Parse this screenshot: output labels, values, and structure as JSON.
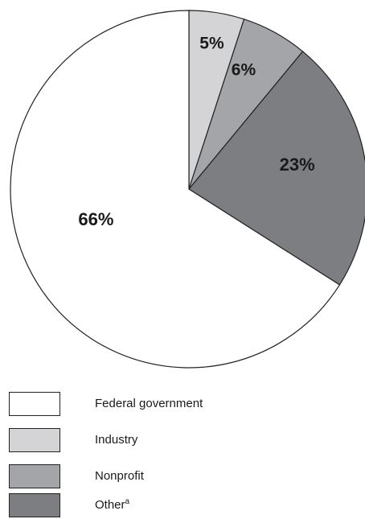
{
  "chart_data": {
    "type": "pie",
    "categories": [
      "Federal government",
      "Industry",
      "Nonprofit",
      "Other"
    ],
    "values": [
      66,
      5,
      6,
      23
    ],
    "value_labels": [
      "66%",
      "5%",
      "6%",
      "23%"
    ],
    "colors": [
      "#ffffff",
      "#d4d4d6",
      "#a4a5a8",
      "#7d7e82"
    ],
    "start": "top, clockwise from Industry",
    "legend_position": "bottom",
    "legend": {
      "items": [
        {
          "label": "Federal government",
          "color": "#ffffff",
          "sup": ""
        },
        {
          "label": "Industry",
          "color": "#d4d4d6",
          "sup": ""
        },
        {
          "label": "Nonprofit",
          "color": "#a4a5a8",
          "sup": ""
        },
        {
          "label": "Other",
          "color": "#7d7e82",
          "sup": "a"
        }
      ]
    }
  }
}
